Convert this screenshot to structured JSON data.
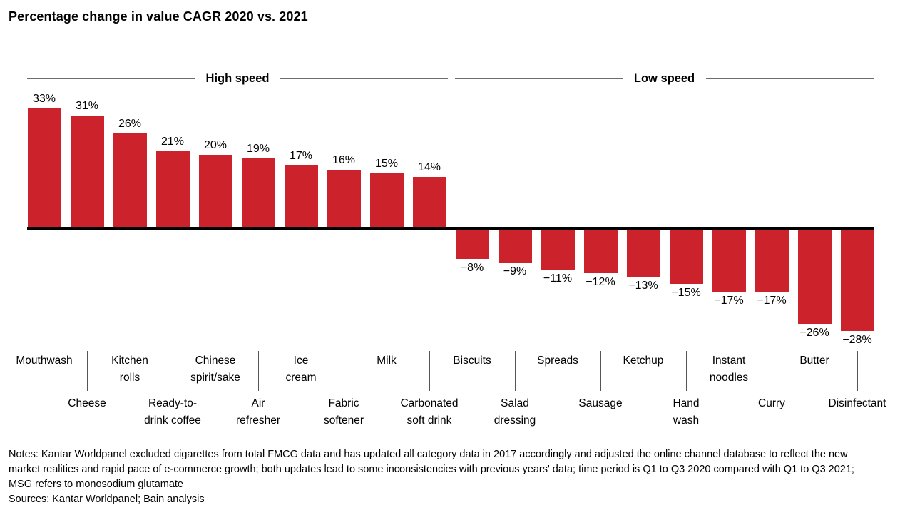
{
  "page": {
    "title": "Percentage change in value CAGR 2020 vs. 2021",
    "notes": "Notes: Kantar Worldpanel excluded cigarettes from total FMCG data and has updated all category data in 2017 accordingly and adjusted the online channel database to reflect the new market realities and rapid pace of e-commerce growth; both updates lead to some inconsistencies with previous years' data; time period is Q1 to Q3 2020 compared with Q1 to Q3 2021; MSG refers to monosodium glutamate",
    "sources": "Sources: Kantar Worldpanel; Bain analysis"
  },
  "chart_data": {
    "type": "bar",
    "title": "Percentage change in value CAGR 2020 vs. 2021",
    "unit": "%",
    "ylim": [
      -28,
      33
    ],
    "grid": false,
    "legend": "none",
    "bar_color": "#cc222b",
    "baseline_color": "#000000",
    "groups": [
      {
        "label": "High speed",
        "category_indices": [
          0,
          9
        ]
      },
      {
        "label": "Low speed",
        "category_indices": [
          10,
          19
        ]
      }
    ],
    "categories": [
      "Mouthwash",
      "Cheese",
      "Kitchen rolls",
      "Ready-to-drink coffee",
      "Chinese spirit/sake",
      "Air refresher",
      "Ice cream",
      "Fabric softener",
      "Milk",
      "Carbonated soft drink",
      "Biscuits",
      "Salad dressing",
      "Spreads",
      "Sausage",
      "Ketchup",
      "Hand wash",
      "Instant noodles",
      "Curry",
      "Butter",
      "Disinfectant"
    ],
    "category_display": [
      "Mouthwash",
      "Cheese",
      "Kitchen\nrolls",
      "Ready-to-\ndrink coffee",
      "Chinese\nspirit/sake",
      "Air\nrefresher",
      "Ice\ncream",
      "Fabric\nsoftener",
      "Milk",
      "Carbonated\nsoft drink",
      "Biscuits",
      "Salad\ndressing",
      "Spreads",
      "Sausage",
      "Ketchup",
      "Hand\nwash",
      "Instant\nnoodles",
      "Curry",
      "Butter",
      "Disinfectant"
    ],
    "values": [
      33,
      31,
      26,
      21,
      20,
      19,
      17,
      16,
      15,
      14,
      -8,
      -9,
      -11,
      -12,
      -13,
      -15,
      -17,
      -17,
      -26,
      -28
    ],
    "value_labels": [
      "33%",
      "31%",
      "26%",
      "21%",
      "20%",
      "19%",
      "17%",
      "16%",
      "15%",
      "14%",
      "−8%",
      "−9%",
      "−11%",
      "−12%",
      "−13%",
      "−15%",
      "−17%",
      "−17%",
      "−26%",
      "−28%"
    ]
  }
}
